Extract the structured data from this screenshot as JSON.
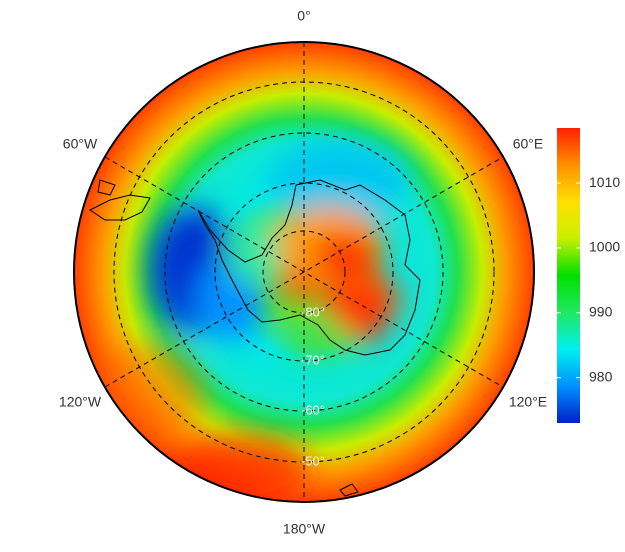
{
  "map": {
    "meridian_labels": [
      "0°",
      "60°E",
      "120°E",
      "180°W",
      "120°W",
      "60°W"
    ],
    "latitude_labels": [
      "-80°",
      "-70°",
      "-60°",
      "-50°"
    ],
    "colorbar": {
      "ylim": [
        973,
        1018.5
      ],
      "yticks": [
        980,
        990,
        1000,
        1010
      ],
      "colors": [
        "#0020c8",
        "#0090ff",
        "#00f0f0",
        "#20e860",
        "#00e000",
        "#c8f000",
        "#ffe000",
        "#ff9000",
        "#ff2000"
      ]
    }
  }
}
